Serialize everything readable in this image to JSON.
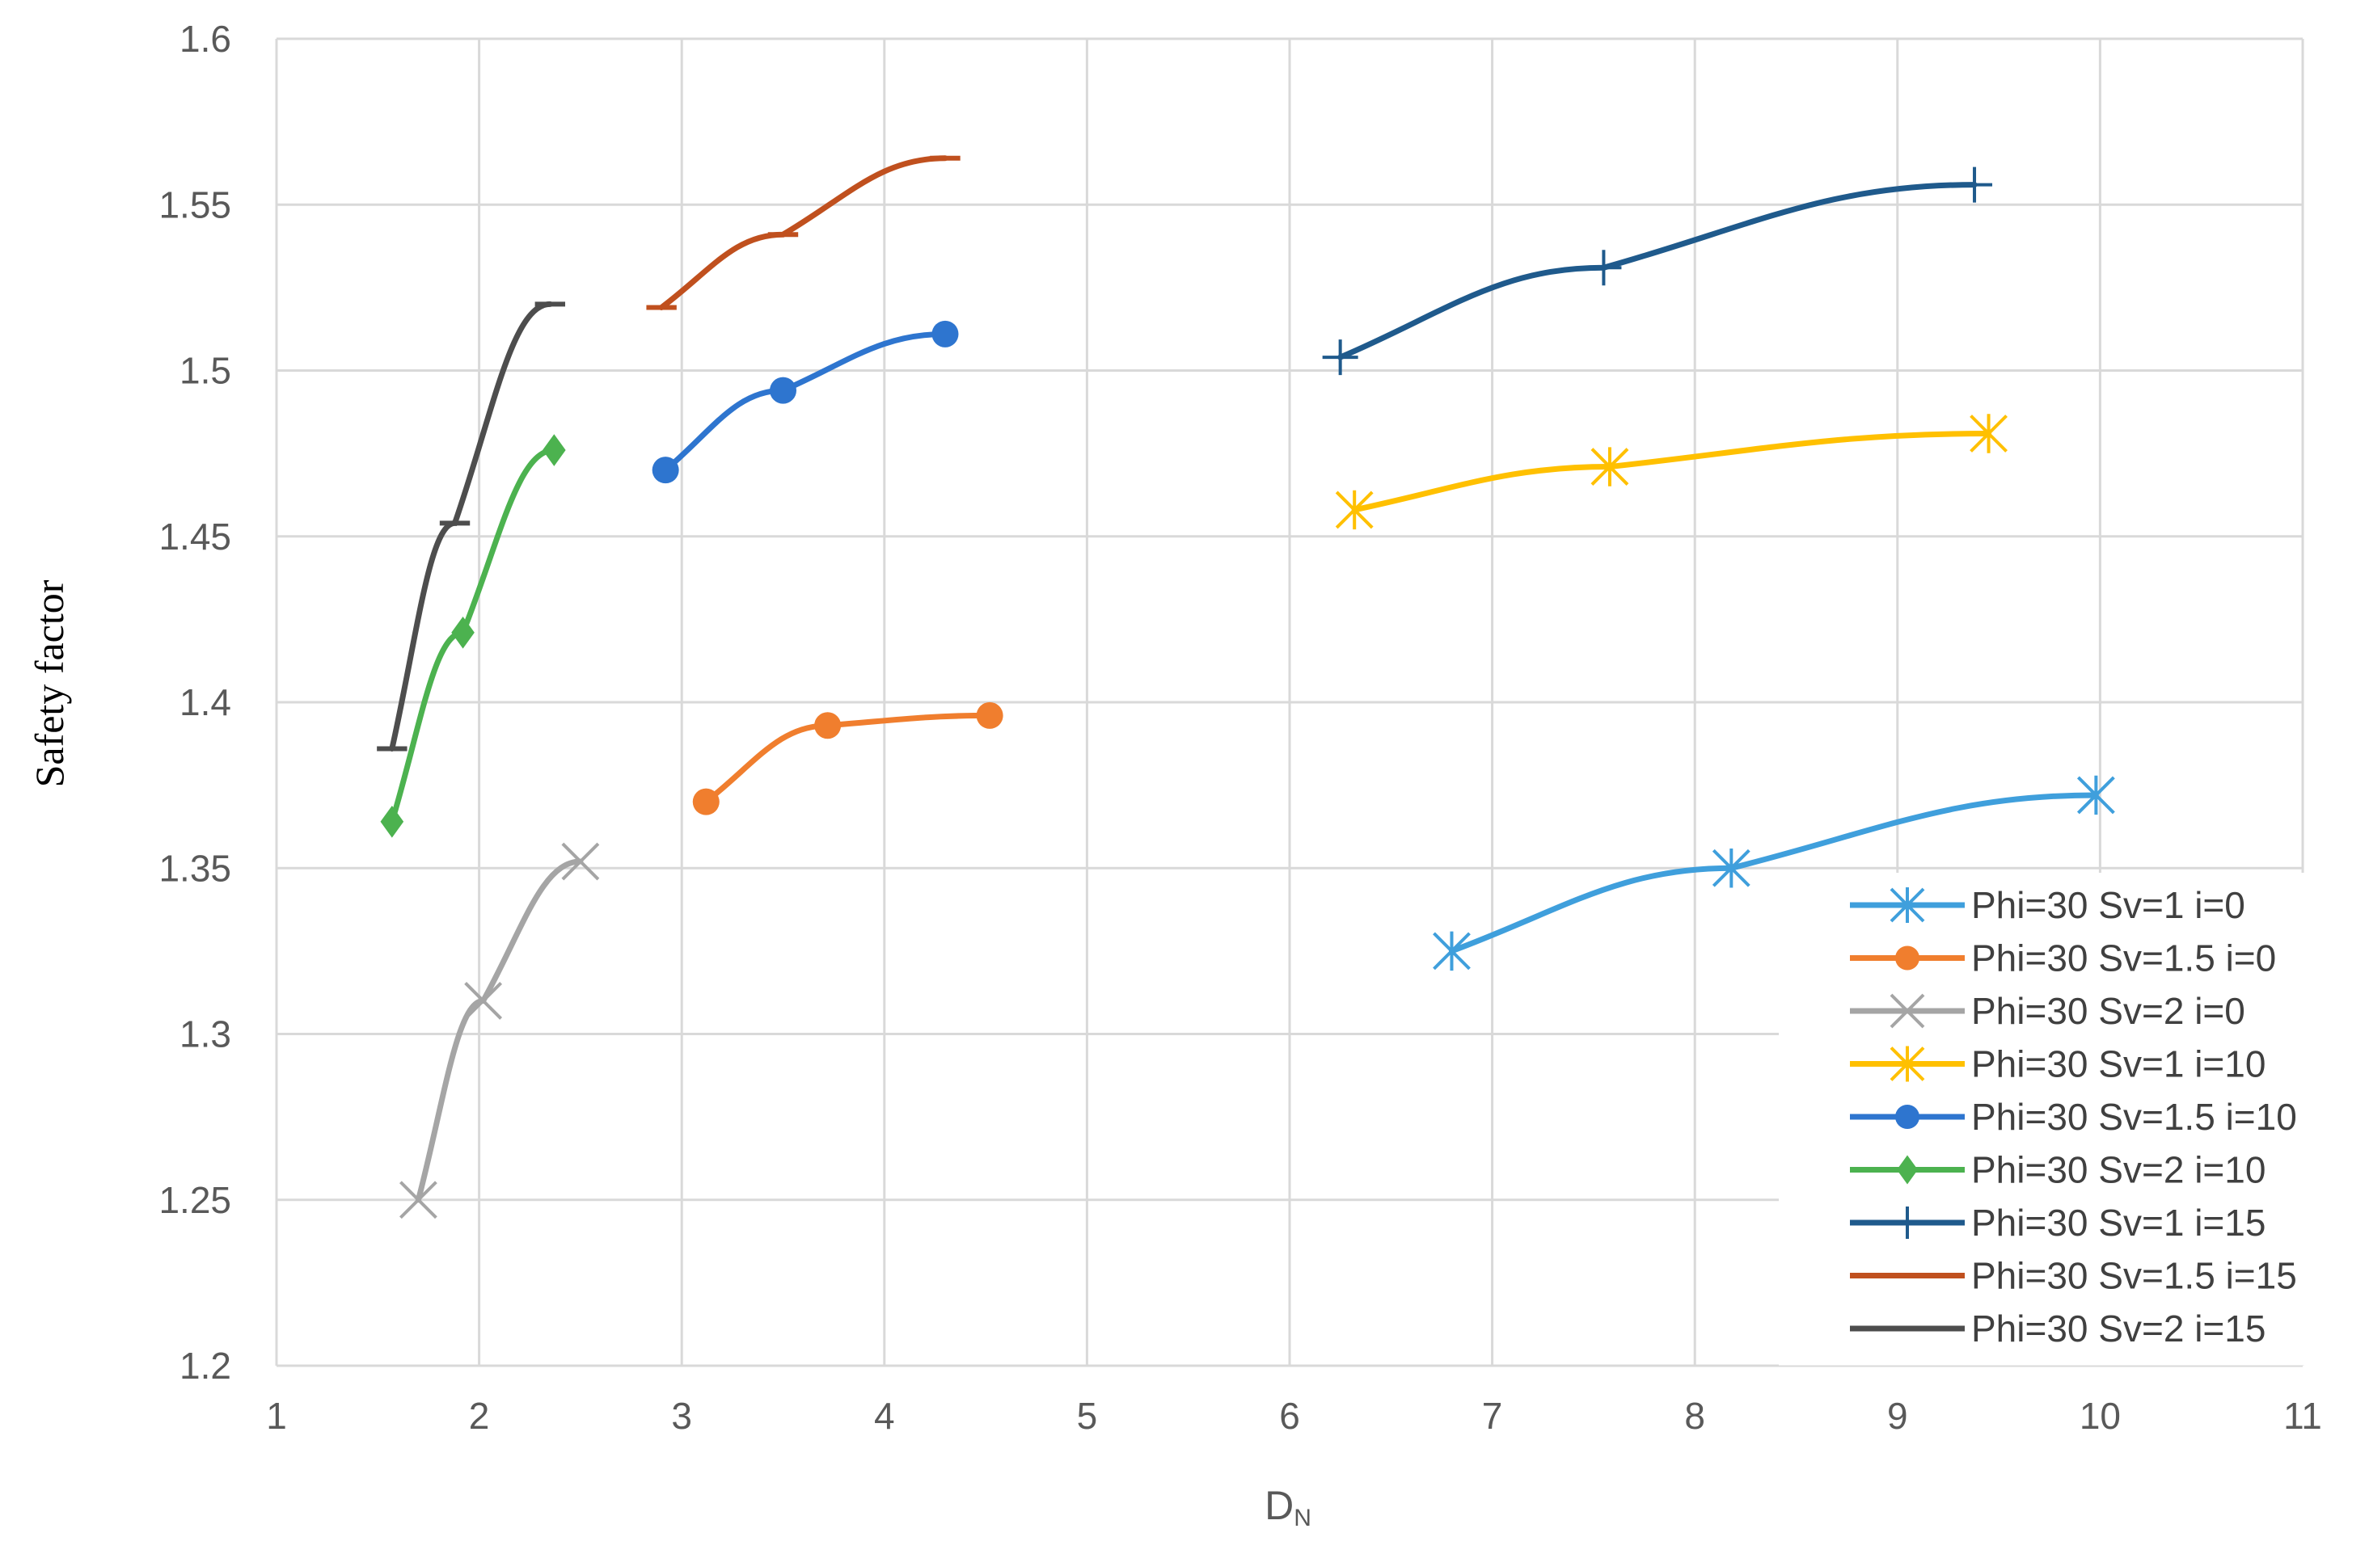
{
  "chart_data": {
    "type": "line",
    "title": "",
    "xlabel": "D",
    "xlabel_sub": "N",
    "ylabel": "Safety factor",
    "xlim": [
      1,
      11
    ],
    "ylim": [
      1.2,
      1.6
    ],
    "x_ticks": [
      "1",
      "2",
      "3",
      "4",
      "5",
      "6",
      "7",
      "8",
      "9",
      "10",
      "11"
    ],
    "y_ticks": [
      "1.2",
      "1.25",
      "1.3",
      "1.35",
      "1.4",
      "1.45",
      "1.5",
      "1.55",
      "1.6"
    ],
    "grid": true,
    "legend_position": "bottom-right",
    "series": [
      {
        "name": "Phi=30 Sv=1 i=0",
        "color": "#3f9fdc",
        "marker": "asterisk",
        "x": [
          6.8,
          8.18,
          9.98
        ],
        "y": [
          1.325,
          1.35,
          1.372
        ]
      },
      {
        "name": "Phi=30 Sv=1.5 i=0",
        "color": "#f07e2e",
        "marker": "circle",
        "x": [
          3.12,
          3.72,
          4.52
        ],
        "y": [
          1.37,
          1.393,
          1.396
        ]
      },
      {
        "name": "Phi=30 Sv=2 i=0",
        "color": "#a5a5a5",
        "marker": "x",
        "x": [
          1.7,
          2.02,
          2.5
        ],
        "y": [
          1.25,
          1.31,
          1.352
        ]
      },
      {
        "name": "Phi=30 Sv=1 i=10",
        "color": "#ffc000",
        "marker": "asterisk",
        "x": [
          6.32,
          7.58,
          9.45
        ],
        "y": [
          1.458,
          1.471,
          1.481
        ]
      },
      {
        "name": "Phi=30 Sv=1.5 i=10",
        "color": "#2e75cf",
        "marker": "circle",
        "x": [
          2.92,
          3.5,
          4.3
        ],
        "y": [
          1.47,
          1.494,
          1.511
        ]
      },
      {
        "name": "Phi=30 Sv=2 i=10",
        "color": "#4cb24f",
        "marker": "diamond",
        "x": [
          1.57,
          1.92,
          2.37
        ],
        "y": [
          1.364,
          1.421,
          1.476
        ]
      },
      {
        "name": "Phi=30 Sv=1 i=15",
        "color": "#1f5a8c",
        "marker": "plus",
        "x": [
          6.25,
          7.55,
          9.38
        ],
        "y": [
          1.504,
          1.531,
          1.556
        ]
      },
      {
        "name": "Phi=30 Sv=1.5 i=15",
        "color": "#c0501e",
        "marker": "dash",
        "x": [
          2.9,
          3.5,
          4.3
        ],
        "y": [
          1.519,
          1.541,
          1.564
        ]
      },
      {
        "name": "Phi=30 Sv=2 i=15",
        "color": "#4d4d4d",
        "marker": "dash",
        "x": [
          1.57,
          1.88,
          2.35
        ],
        "y": [
          1.386,
          1.454,
          1.52
        ]
      }
    ]
  }
}
